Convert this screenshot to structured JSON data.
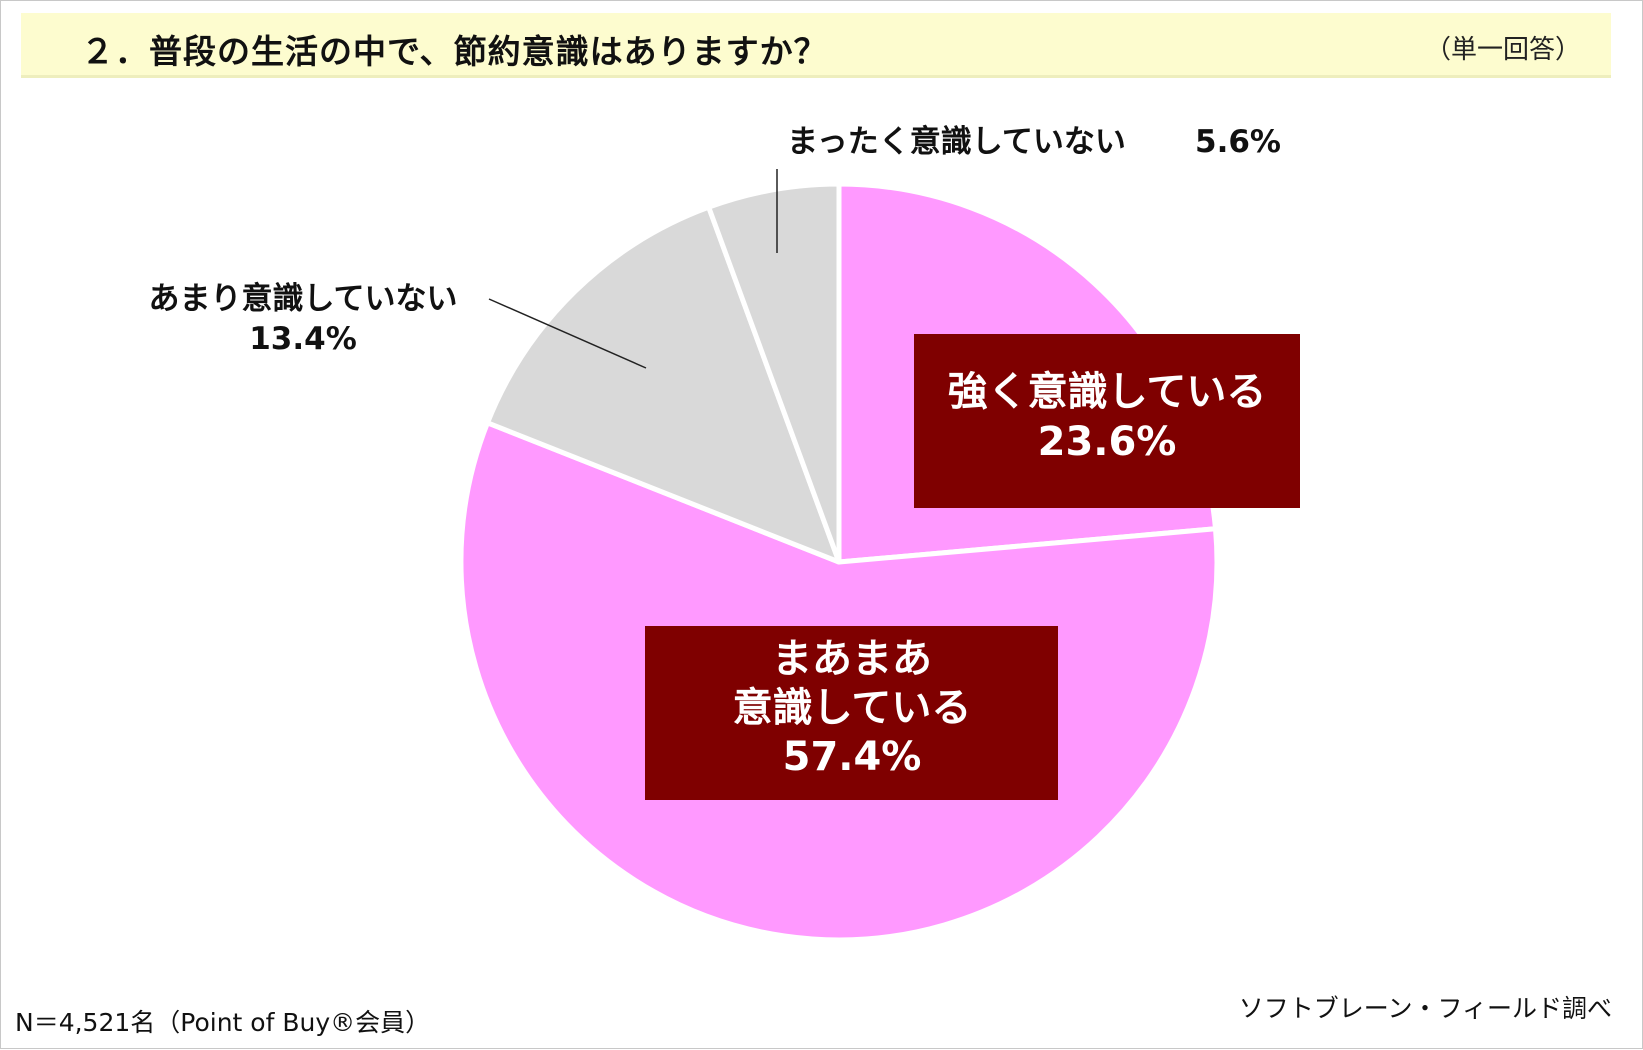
{
  "title": {
    "text": "２．普段の生活の中で、節約意識はありますか？",
    "note": "（単一回答）"
  },
  "chart_data": {
    "type": "pie",
    "start_angle": "12 o'clock, clockwise",
    "slices": [
      {
        "label": "強く意識している",
        "value": 23.6,
        "value_label": "23.6%",
        "color": "#ff99ff",
        "label_style": "boxed"
      },
      {
        "label": "まあまあ意識している",
        "label_lines": [
          "まあまあ",
          "意識している"
        ],
        "value": 57.4,
        "value_label": "57.4%",
        "color": "#ff99ff",
        "label_style": "boxed"
      },
      {
        "label": "あまり意識していない",
        "value": 13.4,
        "value_label": "13.4%",
        "color": "#d9d9d9",
        "label_style": "leader"
      },
      {
        "label": "まったく意識していない",
        "value": 5.6,
        "value_label": "5.6%",
        "color": "#d9d9d9",
        "label_style": "leader"
      }
    ],
    "label_box_color": "#7f0000",
    "slice_border_color": "#ffffff"
  },
  "footer": {
    "n_text": "N＝4,521名（Point of Buy®会員）",
    "source": "ソフトブレーン・フィールド調べ"
  }
}
